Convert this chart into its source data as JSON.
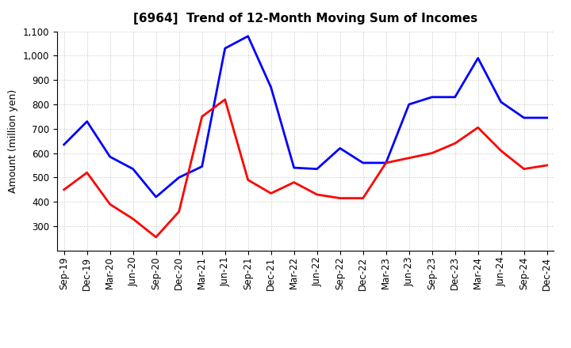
{
  "title": "[6964]  Trend of 12-Month Moving Sum of Incomes",
  "ylabel": "Amount (million yen)",
  "x_labels": [
    "Sep-19",
    "Dec-19",
    "Mar-20",
    "Jun-20",
    "Sep-20",
    "Dec-20",
    "Mar-21",
    "Jun-21",
    "Sep-21",
    "Dec-21",
    "Mar-22",
    "Jun-22",
    "Sep-22",
    "Dec-22",
    "Mar-23",
    "Jun-23",
    "Sep-23",
    "Dec-23",
    "Mar-24",
    "Jun-24",
    "Sep-24",
    "Dec-24"
  ],
  "ordinary_income": [
    635,
    730,
    585,
    535,
    420,
    500,
    545,
    1030,
    1080,
    870,
    540,
    535,
    620,
    560,
    560,
    800,
    830,
    830,
    990,
    810,
    745,
    745
  ],
  "net_income": [
    450,
    520,
    390,
    330,
    255,
    360,
    750,
    820,
    490,
    435,
    480,
    430,
    415,
    415,
    560,
    580,
    600,
    640,
    705,
    610,
    535,
    550
  ],
  "ordinary_color": "#0000FF",
  "net_color": "#FF0000",
  "ylim_min": 200,
  "ylim_max": 1100,
  "yticks": [
    300,
    400,
    500,
    600,
    700,
    800,
    900,
    1000,
    1100
  ],
  "background_color": "#FFFFFF",
  "grid_color": "#BBBBBB",
  "title_fontsize": 11,
  "label_fontsize": 9,
  "tick_fontsize": 8.5,
  "legend_fontsize": 9.5
}
